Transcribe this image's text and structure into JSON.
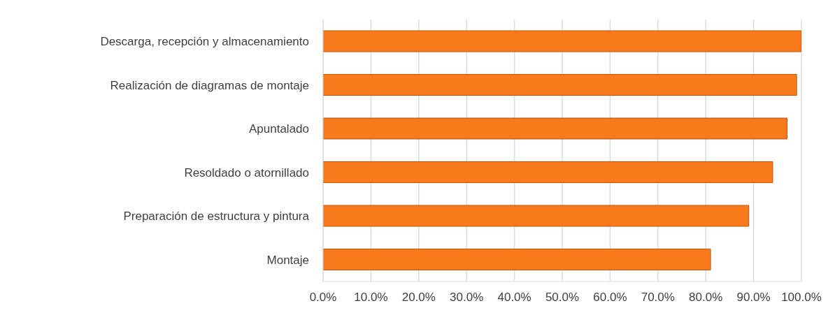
{
  "chart_data": {
    "type": "bar",
    "orientation": "horizontal",
    "categories": [
      "Descarga, recepción y almacenamiento",
      "Realización de diagramas de montaje",
      "Apuntalado",
      "Resoldado o atornillado",
      "Preparación de estructura y pintura",
      "Montaje"
    ],
    "values": [
      100,
      99,
      97,
      94,
      89,
      81
    ],
    "color": "#f97a1a",
    "xlim": [
      0,
      100
    ],
    "xticks": [
      {
        "value": 0,
        "label": "0.0%"
      },
      {
        "value": 10,
        "label": "10.0%"
      },
      {
        "value": 20,
        "label": "20.0%"
      },
      {
        "value": 30,
        "label": "30.0%"
      },
      {
        "value": 40,
        "label": "40.0%"
      },
      {
        "value": 50,
        "label": "50.0%"
      },
      {
        "value": 60,
        "label": "60.0%"
      },
      {
        "value": 70,
        "label": "70.0%"
      },
      {
        "value": 80,
        "label": "80.0%"
      },
      {
        "value": 90,
        "label": "90.0%"
      },
      {
        "value": 100,
        "label": "100.0%"
      }
    ],
    "grid": "x",
    "legend": false
  }
}
